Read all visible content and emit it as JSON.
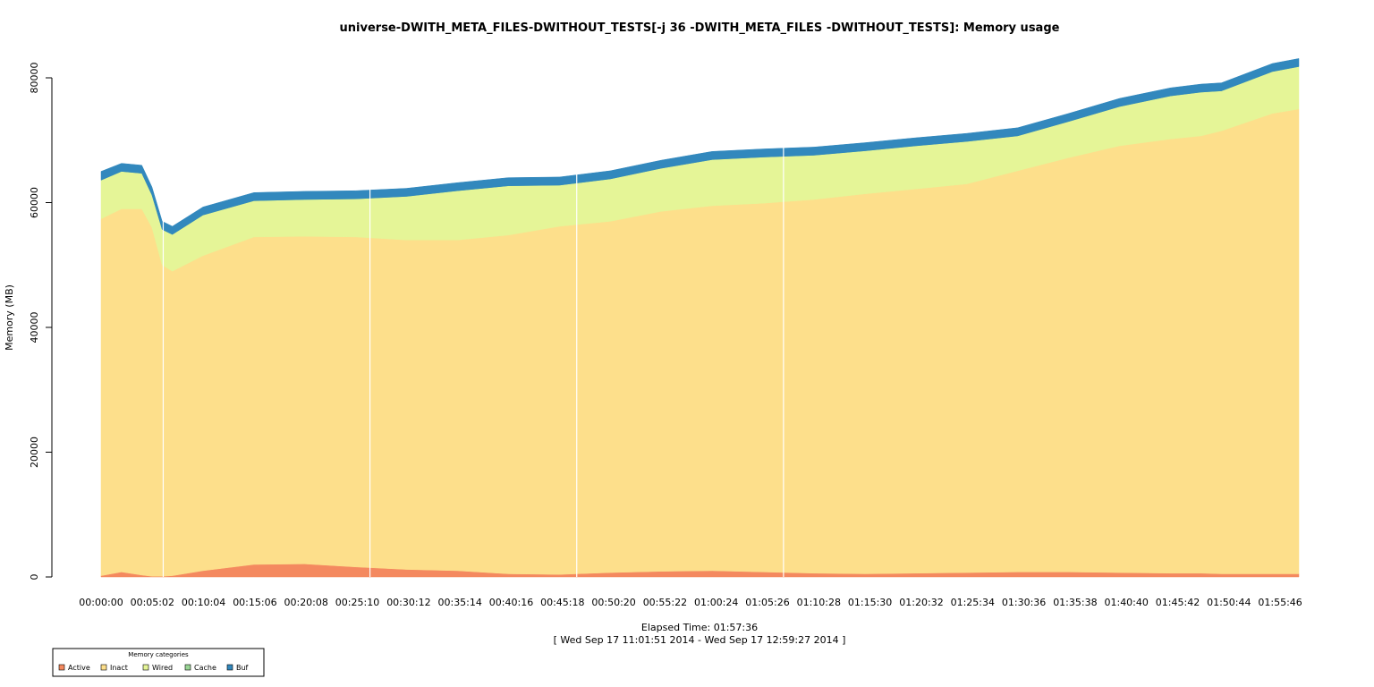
{
  "chart_data": {
    "type": "area",
    "stacked": true,
    "title": "universe-DWITH_META_FILES-DWITHOUT_TESTS[-j 36 -DWITH_META_FILES -DWITHOUT_TESTS]: Memory usage",
    "xlabel_line1": "Elapsed Time: 01:57:36",
    "xlabel_line2": "[ Wed Sep 17 11:01:51 2014 - Wed Sep 17 12:59:27 2014 ]",
    "ylabel": "Memory (MB)",
    "ylim": [
      0,
      80000
    ],
    "xlim_minutes": [
      0,
      117.6
    ],
    "y_ticks": [
      0,
      20000,
      40000,
      60000,
      80000
    ],
    "y_tick_labels": [
      "0",
      "20000",
      "40000",
      "60000",
      "80000"
    ],
    "x_tick_labels": [
      "00:00:00",
      "00:05:02",
      "00:10:04",
      "00:15:06",
      "00:20:08",
      "00:25:10",
      "00:30:12",
      "00:35:14",
      "00:40:16",
      "00:45:18",
      "00:50:20",
      "00:55:22",
      "01:00:24",
      "01:05:26",
      "01:10:28",
      "01:15:30",
      "01:20:32",
      "01:25:34",
      "01:30:36",
      "01:35:38",
      "01:40:40",
      "01:45:42",
      "01:50:44",
      "01:55:46"
    ],
    "x_minutes": [
      0,
      2,
      4,
      5,
      6,
      7,
      10,
      15,
      20,
      25,
      30,
      35,
      40,
      45,
      50,
      55,
      60,
      65,
      70,
      75,
      80,
      85,
      90,
      95,
      100,
      105,
      108,
      110,
      115,
      117.6
    ],
    "series": [
      {
        "name": "Active",
        "color": "#f4895f",
        "values": [
          200,
          800,
          300,
          100,
          100,
          200,
          1000,
          2000,
          2100,
          1600,
          1200,
          1000,
          500,
          400,
          700,
          900,
          1000,
          800,
          600,
          500,
          600,
          700,
          800,
          800,
          700,
          600,
          600,
          500,
          500,
          500
        ]
      },
      {
        "name": "Inact",
        "color": "#fddf8b",
        "values": [
          57200,
          58200,
          58700,
          55900,
          49900,
          48800,
          50500,
          52500,
          52500,
          52900,
          52800,
          53000,
          54300,
          55800,
          56300,
          57700,
          58500,
          59100,
          59900,
          60900,
          61600,
          62300,
          64300,
          66400,
          68400,
          69600,
          70100,
          71000,
          73800,
          74500
        ]
      },
      {
        "name": "Wired",
        "color": "#e5f597",
        "values": [
          6200,
          6000,
          5700,
          5200,
          5700,
          5900,
          6500,
          5800,
          5900,
          6100,
          7000,
          7900,
          7900,
          6600,
          6800,
          6900,
          7400,
          7400,
          7100,
          6900,
          6900,
          6800,
          5600,
          5800,
          6300,
          6900,
          7000,
          6400,
          6700,
          6800
        ]
      },
      {
        "name": "Cache",
        "color": "#99d594",
        "values": [
          0,
          0,
          0,
          0,
          0,
          0,
          0,
          0,
          0,
          0,
          0,
          0,
          0,
          0,
          0,
          0,
          0,
          0,
          0,
          0,
          0,
          0,
          0,
          0,
          0,
          0,
          0,
          0,
          0,
          0
        ]
      },
      {
        "name": "Buf",
        "color": "#3288bd",
        "values": [
          1400,
          1300,
          1300,
          1300,
          1300,
          1300,
          1300,
          1300,
          1300,
          1300,
          1300,
          1300,
          1300,
          1300,
          1300,
          1300,
          1300,
          1300,
          1300,
          1300,
          1300,
          1300,
          1300,
          1300,
          1300,
          1300,
          1300,
          1300,
          1300,
          1300
        ]
      }
    ],
    "gap_minutes": [
      6.1,
      26.4,
      46.7,
      67.0
    ],
    "legend": {
      "title": "Memory categories",
      "placement": "bottom-left",
      "entries": [
        "Active",
        "Inact",
        "Wired",
        "Cache",
        "Buf"
      ]
    }
  }
}
